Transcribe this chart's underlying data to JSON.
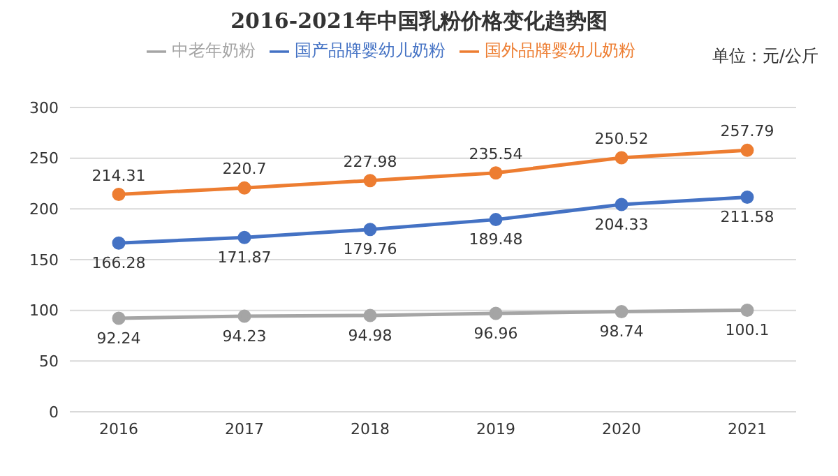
{
  "chart_data": {
    "type": "line",
    "title": "2016-2021年中国乳粉价格变化趋势图",
    "annotations": [
      "单位：元/公斤"
    ],
    "categories": [
      "2016",
      "2017",
      "2018",
      "2019",
      "2020",
      "2021"
    ],
    "series": [
      {
        "name": "国产品牌婴幼儿奶粉",
        "color": "#4472c4",
        "values": [
          166.28,
          171.87,
          179.76,
          189.48,
          204.33,
          211.58
        ]
      },
      {
        "name": "国外品牌婴幼儿奶粉",
        "color": "#ed7d31",
        "values": [
          214.31,
          220.7,
          227.98,
          235.54,
          250.52,
          257.79
        ]
      },
      {
        "name": "中老年奶粉",
        "color": "#a5a5a5",
        "values": [
          92.24,
          94.23,
          94.98,
          96.96,
          98.74,
          100.1
        ]
      }
    ],
    "ylim": [
      0,
      300
    ],
    "yticks": [
      0,
      50,
      100,
      150,
      200,
      250,
      300
    ],
    "grid": "y",
    "legend": "top",
    "marker": "circle",
    "line_style": "solid",
    "data_labels": true
  }
}
